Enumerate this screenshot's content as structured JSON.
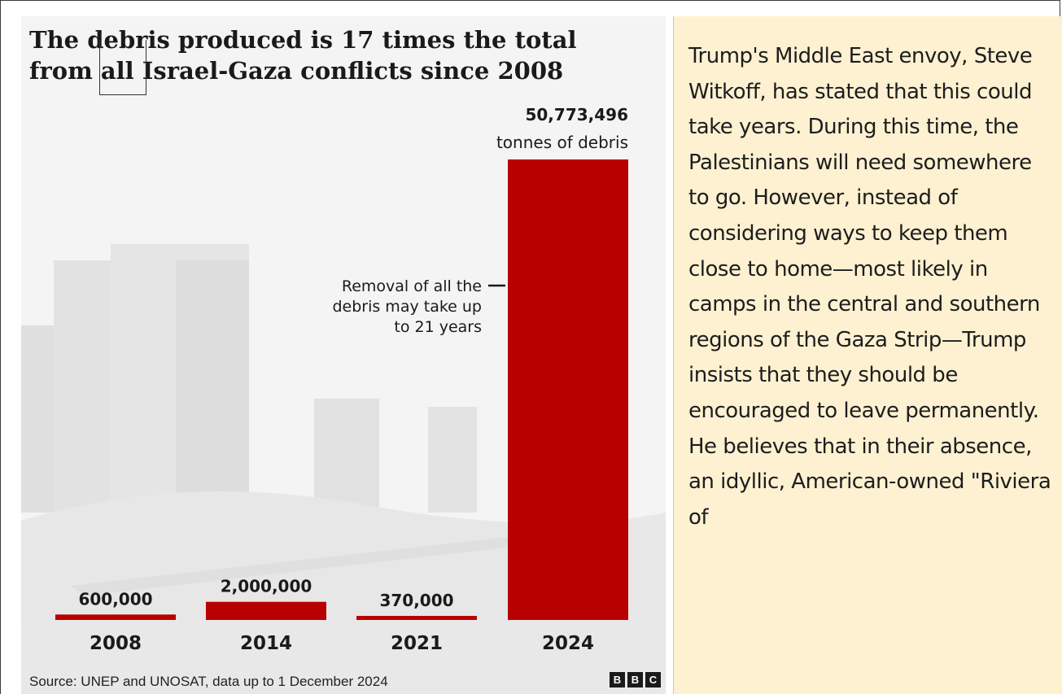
{
  "chart_data": {
    "type": "bar",
    "title": "The debris produced is 17 times the total from all Israel-Gaza conflicts since 2008",
    "categories": [
      "2008",
      "2014",
      "2021",
      "2024"
    ],
    "values": [
      600000,
      2000000,
      370000,
      50773496
    ],
    "value_labels": [
      "600,000",
      "2,000,000",
      "370,000",
      "50,773,496"
    ],
    "unit_label": "tonnes of debris",
    "annotation": "Removal of all the debris may take up to 21 years",
    "annotation_lines": [
      "Removal of all the",
      "debris may take up",
      "to 21 years"
    ],
    "bar_color": "#b80000",
    "ylim": [
      0,
      50773496
    ],
    "grid": false,
    "legend": "none"
  },
  "source": "Source: UNEP and UNOSAT, data up to 1 December 2024",
  "logo_letters": [
    "B",
    "B",
    "C"
  ],
  "article": {
    "text": "Trump's Middle East envoy, Steve Witkoff, has stated that this could take years. During this time, the Palestinians will need somewhere to go. However, instead of considering ways to keep them close to home—most likely in camps in the central and southern regions of the Gaza Strip—Trump insists that they should be encouraged to leave permanently. He believes that in their absence, an idyllic, American-owned \"Riviera of"
  }
}
